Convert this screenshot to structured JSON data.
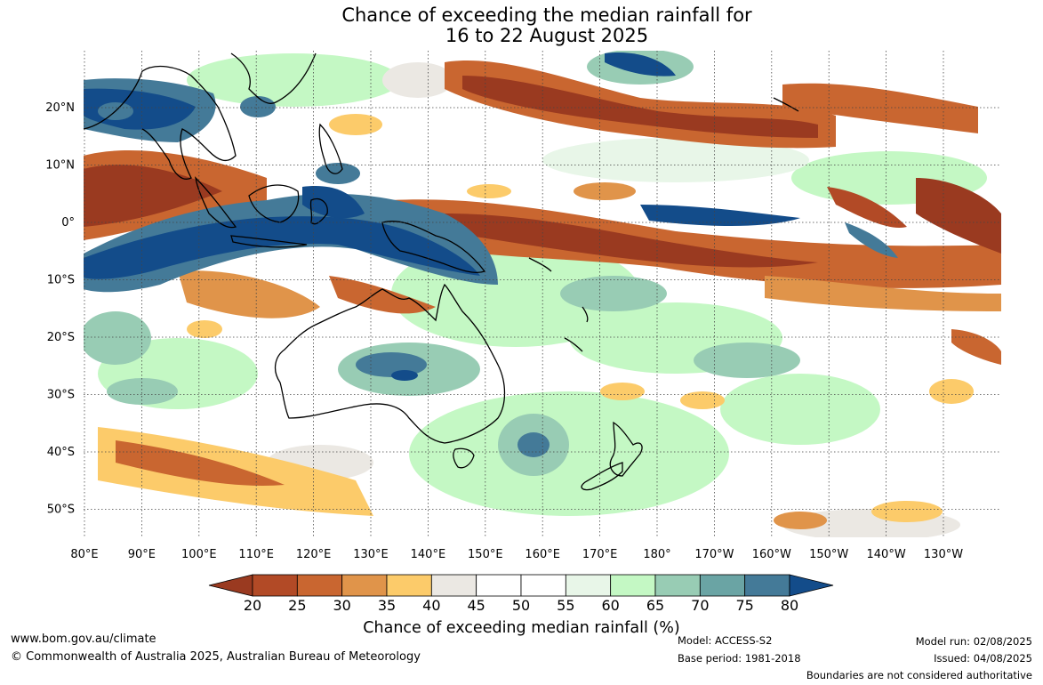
{
  "title": {
    "line1": "Chance of exceeding the median rainfall for",
    "line2": "16 to 22 August 2025"
  },
  "map": {
    "lat_labels": [
      "20°N",
      "10°N",
      "0°",
      "10°S",
      "20°S",
      "30°S",
      "40°S",
      "50°S"
    ],
    "lon_labels": [
      "80°E",
      "90°E",
      "100°E",
      "110°E",
      "120°E",
      "130°E",
      "140°E",
      "150°E",
      "160°E",
      "170°E",
      "180°",
      "170°W",
      "160°W",
      "150°W",
      "140°W",
      "130°W"
    ]
  },
  "colorbar": {
    "title": "Chance of exceeding median rainfall (%)",
    "ticks": [
      "20",
      "25",
      "30",
      "35",
      "40",
      "45",
      "50",
      "55",
      "60",
      "65",
      "70",
      "75",
      "80"
    ],
    "colors": [
      "#9a3a20",
      "#b24a26",
      "#c96630",
      "#e0944a",
      "#fccb6a",
      "#ebe8e3",
      "#ffffff",
      "#ffffff",
      "#e8f6e8",
      "#c4f8c4",
      "#98ccb4",
      "#6aa4a4",
      "#447a98",
      "#134c8a"
    ]
  },
  "footer": {
    "website": "www.bom.gov.au/climate",
    "copyright": "© Commonwealth of Australia 2025, Australian Bureau of Meteorology",
    "model": "Model: ACCESS-S2",
    "base_period": "Base period: 1981-2018",
    "model_run": "Model run: 02/08/2025",
    "issued": "Issued: 04/08/2025",
    "disclaimer": "Boundaries are not considered authoritative"
  }
}
